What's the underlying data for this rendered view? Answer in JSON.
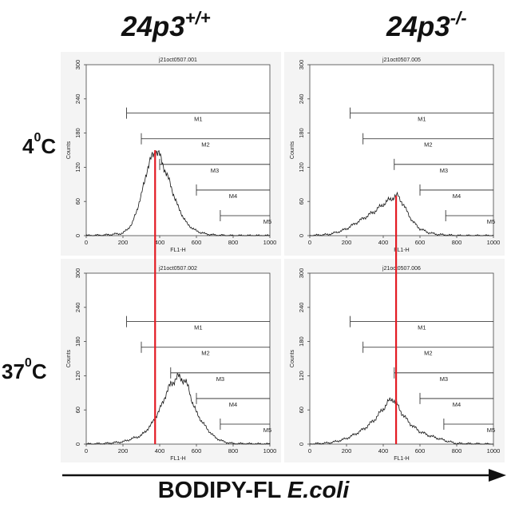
{
  "header": {
    "col_left": "24p3",
    "col_left_sup": "+/+",
    "col_right": "24p3",
    "col_right_sup": "-/-"
  },
  "rows": {
    "top_base": "4",
    "top_sup": "0",
    "top_unit": "C",
    "bottom_base": "37",
    "bottom_sup": "0",
    "bottom_unit": "C"
  },
  "footer": {
    "xlabel_main": "BODIPY-FL ",
    "xlabel_italic": "E.coli"
  },
  "colors": {
    "trace": "#111111",
    "marker_line": "#e31b23",
    "panel_bg": "#f4f4f4",
    "arrow": "#111111"
  },
  "chart_data": [
    {
      "type": "line",
      "title": "j21oct0507.001",
      "xlabel": "FL1-H",
      "ylabel": "Counts",
      "xlim": [
        0,
        1000
      ],
      "ylim": [
        0,
        300
      ],
      "xticks": [
        "0",
        "200",
        "400",
        "600",
        "800",
        "1000"
      ],
      "yticks": [
        "0",
        "60",
        "120",
        "180",
        "240",
        "300"
      ],
      "series": [
        {
          "x": [
            0,
            100,
            200,
            250,
            300,
            330,
            360,
            380,
            400,
            430,
            460,
            500,
            550,
            600,
            650,
            700,
            800,
            1000
          ],
          "y": [
            0,
            1,
            4,
            20,
            70,
            115,
            140,
            150,
            140,
            115,
            88,
            50,
            20,
            8,
            3,
            1,
            0,
            0
          ]
        }
      ],
      "markers": [
        {
          "label": "M1",
          "start": 220,
          "end": 1000,
          "y": 215
        },
        {
          "label": "M2",
          "start": 300,
          "end": 1000,
          "y": 170
        },
        {
          "label": "M3",
          "start": 400,
          "end": 1000,
          "y": 125
        },
        {
          "label": "M4",
          "start": 600,
          "end": 1000,
          "y": 80
        },
        {
          "label": "M5",
          "start": 730,
          "end": 1000,
          "y": 35
        }
      ]
    },
    {
      "type": "line",
      "title": "j21oct0507.005",
      "xlabel": "FL1-H",
      "ylabel": "Counts",
      "xlim": [
        0,
        1000
      ],
      "ylim": [
        0,
        300
      ],
      "xticks": [
        "0",
        "200",
        "400",
        "600",
        "800",
        "1000"
      ],
      "yticks": [
        "0",
        "60",
        "120",
        "180",
        "240",
        "300"
      ],
      "series": [
        {
          "x": [
            0,
            100,
            150,
            200,
            250,
            300,
            350,
            400,
            430,
            460,
            480,
            500,
            530,
            560,
            600,
            650,
            700,
            750,
            800,
            1000
          ],
          "y": [
            0,
            2,
            6,
            12,
            22,
            32,
            42,
            55,
            62,
            68,
            70,
            60,
            42,
            25,
            12,
            5,
            2,
            1,
            0,
            0
          ]
        }
      ],
      "markers": [
        {
          "label": "M1",
          "start": 220,
          "end": 1000,
          "y": 215
        },
        {
          "label": "M2",
          "start": 290,
          "end": 1000,
          "y": 170
        },
        {
          "label": "M3",
          "start": 460,
          "end": 1000,
          "y": 125
        },
        {
          "label": "M4",
          "start": 600,
          "end": 1000,
          "y": 80
        },
        {
          "label": "M5",
          "start": 740,
          "end": 1000,
          "y": 35
        }
      ]
    },
    {
      "type": "line",
      "title": "j21oct0507.002",
      "xlabel": "FL1-H",
      "ylabel": "Counts",
      "xlim": [
        0,
        1000
      ],
      "ylim": [
        0,
        300
      ],
      "xticks": [
        "0",
        "200",
        "400",
        "600",
        "800",
        "1000"
      ],
      "yticks": [
        "0",
        "60",
        "120",
        "180",
        "240",
        "300"
      ],
      "series": [
        {
          "x": [
            0,
            100,
            200,
            300,
            350,
            400,
            430,
            460,
            480,
            500,
            520,
            540,
            560,
            580,
            600,
            650,
            700,
            750,
            800,
            1000
          ],
          "y": [
            0,
            1,
            4,
            15,
            32,
            60,
            85,
            105,
            112,
            118,
            115,
            110,
            95,
            72,
            55,
            30,
            12,
            4,
            1,
            0
          ]
        }
      ],
      "markers": [
        {
          "label": "M1",
          "start": 220,
          "end": 1000,
          "y": 215
        },
        {
          "label": "M2",
          "start": 300,
          "end": 1000,
          "y": 170
        },
        {
          "label": "M3",
          "start": 460,
          "end": 1000,
          "y": 125
        },
        {
          "label": "M4",
          "start": 600,
          "end": 1000,
          "y": 80
        },
        {
          "label": "M5",
          "start": 730,
          "end": 1000,
          "y": 35
        }
      ]
    },
    {
      "type": "line",
      "title": "j21oct0507.006",
      "xlabel": "FL1-H",
      "ylabel": "Counts",
      "xlim": [
        0,
        1000
      ],
      "ylim": [
        0,
        300
      ],
      "xticks": [
        "0",
        "200",
        "400",
        "600",
        "800",
        "1000"
      ],
      "yticks": [
        "0",
        "60",
        "120",
        "180",
        "240",
        "300"
      ],
      "series": [
        {
          "x": [
            0,
            100,
            150,
            200,
            250,
            300,
            350,
            400,
            430,
            450,
            470,
            500,
            530,
            560,
            600,
            650,
            700,
            750,
            800,
            1000
          ],
          "y": [
            0,
            2,
            5,
            10,
            18,
            28,
            42,
            62,
            75,
            80,
            72,
            55,
            42,
            32,
            22,
            15,
            10,
            5,
            1,
            0
          ]
        }
      ],
      "markers": [
        {
          "label": "M1",
          "start": 220,
          "end": 1000,
          "y": 215
        },
        {
          "label": "M2",
          "start": 290,
          "end": 1000,
          "y": 170
        },
        {
          "label": "M3",
          "start": 460,
          "end": 1000,
          "y": 125
        },
        {
          "label": "M4",
          "start": 600,
          "end": 1000,
          "y": 80
        },
        {
          "label": "M5",
          "start": 730,
          "end": 1000,
          "y": 35
        }
      ]
    }
  ]
}
